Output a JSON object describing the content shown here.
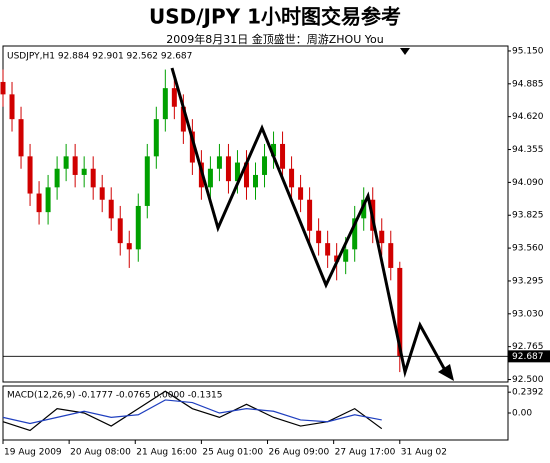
{
  "chart_data": [
    {
      "type": "candlestick",
      "title": "USD/JPY 1小时图交易参考",
      "subtitle": "2009年8月31日 金顶盛世：周游ZHOU You",
      "annotation": "USDJPY,H1 92.884 92.901 92.562 92.687",
      "last_price": 92.687,
      "up_color": "#00a000",
      "down_color": "#d00000",
      "xlim": [
        0,
        168
      ],
      "ylim": [
        92.48,
        95.19
      ],
      "yticks": [
        {
          "value": 95.15,
          "label": "95.150"
        },
        94.885,
        {
          "value": 94.62,
          "label": "94.620"
        },
        94.355,
        {
          "value": 94.09,
          "label": "94.090"
        },
        93.825,
        {
          "value": 93.56,
          "label": "93.560"
        },
        93.295,
        {
          "value": 93.03,
          "label": "93.030"
        },
        92.765,
        {
          "value": 92.5,
          "label": "92.500"
        }
      ],
      "x": [
        0,
        3,
        6,
        9,
        12,
        15,
        18,
        21,
        24,
        27,
        30,
        33,
        36,
        39,
        42,
        45,
        48,
        51,
        54,
        57,
        60,
        63,
        66,
        69,
        72,
        75,
        78,
        81,
        84,
        87,
        90,
        93,
        96,
        99,
        102,
        105,
        108,
        111,
        114,
        117,
        120,
        123,
        126,
        129,
        132
      ],
      "open": [
        94.9,
        94.8,
        94.6,
        94.3,
        94.0,
        93.85,
        94.05,
        94.2,
        94.3,
        94.15,
        94.2,
        94.05,
        93.95,
        93.8,
        93.6,
        93.55,
        93.9,
        94.3,
        94.6,
        94.85,
        94.7,
        94.5,
        94.25,
        94.05,
        94.2,
        94.3,
        94.1,
        94.25,
        94.05,
        94.15,
        94.3,
        94.4,
        94.2,
        94.05,
        93.95,
        93.7,
        93.6,
        93.5,
        93.45,
        93.55,
        93.8,
        93.95,
        93.7,
        93.6,
        93.4
      ],
      "high": [
        95.0,
        94.9,
        94.7,
        94.4,
        94.1,
        94.15,
        94.3,
        94.4,
        94.4,
        94.3,
        94.3,
        94.15,
        94.05,
        93.9,
        93.7,
        94.0,
        94.4,
        94.7,
        95.0,
        94.95,
        94.8,
        94.6,
        94.35,
        94.3,
        94.4,
        94.4,
        94.35,
        94.35,
        94.25,
        94.4,
        94.5,
        94.5,
        94.3,
        94.15,
        94.05,
        93.8,
        93.7,
        93.6,
        93.65,
        93.9,
        94.05,
        94.05,
        93.8,
        93.7,
        93.45
      ],
      "low": [
        94.7,
        94.5,
        94.2,
        93.9,
        93.75,
        93.75,
        93.95,
        94.1,
        94.05,
        94.05,
        93.95,
        93.85,
        93.7,
        93.5,
        93.4,
        93.45,
        93.8,
        94.2,
        94.5,
        94.6,
        94.4,
        94.15,
        93.95,
        93.95,
        94.1,
        94.0,
        94.0,
        93.95,
        93.95,
        94.05,
        94.2,
        94.1,
        93.95,
        93.85,
        93.6,
        93.5,
        93.4,
        93.3,
        93.35,
        93.45,
        93.7,
        93.6,
        93.5,
        93.3,
        92.56
      ],
      "close": [
        94.8,
        94.6,
        94.3,
        94.0,
        93.85,
        94.05,
        94.2,
        94.3,
        94.15,
        94.2,
        94.05,
        93.95,
        93.8,
        93.6,
        93.55,
        93.9,
        94.3,
        94.6,
        94.85,
        94.7,
        94.5,
        94.25,
        94.05,
        94.2,
        94.3,
        94.1,
        94.25,
        94.05,
        94.15,
        94.3,
        94.4,
        94.2,
        94.05,
        93.95,
        93.7,
        93.6,
        93.5,
        93.45,
        93.55,
        93.8,
        93.95,
        93.7,
        93.6,
        93.4,
        92.69
      ]
    },
    {
      "type": "line",
      "title": "MACD(12,26,9) -0.1777 -0.0765 0.0000 -0.1315",
      "xlim": [
        0,
        168
      ],
      "ylim": [
        -0.31,
        0.31
      ],
      "yticks": [
        0.2392,
        {
          "value": 0,
          "label": "0.00"
        }
      ],
      "xticks": [
        {
          "value": 0,
          "label": "19 Aug 2009"
        },
        {
          "value": 22,
          "label": "20 Aug 08:00"
        },
        {
          "value": 44,
          "label": "21 Aug 16:00"
        },
        {
          "value": 66,
          "label": "25 Aug 01:00"
        },
        {
          "value": 88,
          "label": "26 Aug 09:00"
        },
        {
          "value": 110,
          "label": "27 Aug 17:00"
        },
        {
          "value": 132,
          "label": "31 Aug 02"
        }
      ],
      "x": [
        0,
        9,
        18,
        27,
        36,
        45,
        54,
        63,
        72,
        81,
        90,
        99,
        108,
        117,
        126
      ],
      "series": [
        {
          "color": "#000000",
          "values": [
            -0.1,
            -0.2,
            0.05,
            0.0,
            -0.15,
            0.05,
            0.25,
            0.05,
            -0.05,
            0.1,
            -0.05,
            -0.15,
            -0.1,
            0.05,
            -0.18
          ]
        },
        {
          "color": "#1f3fbf",
          "values": [
            -0.05,
            -0.12,
            -0.05,
            0.02,
            -0.05,
            -0.02,
            0.15,
            0.12,
            0.0,
            0.05,
            0.02,
            -0.08,
            -0.1,
            -0.02,
            -0.08
          ]
        }
      ]
    }
  ]
}
